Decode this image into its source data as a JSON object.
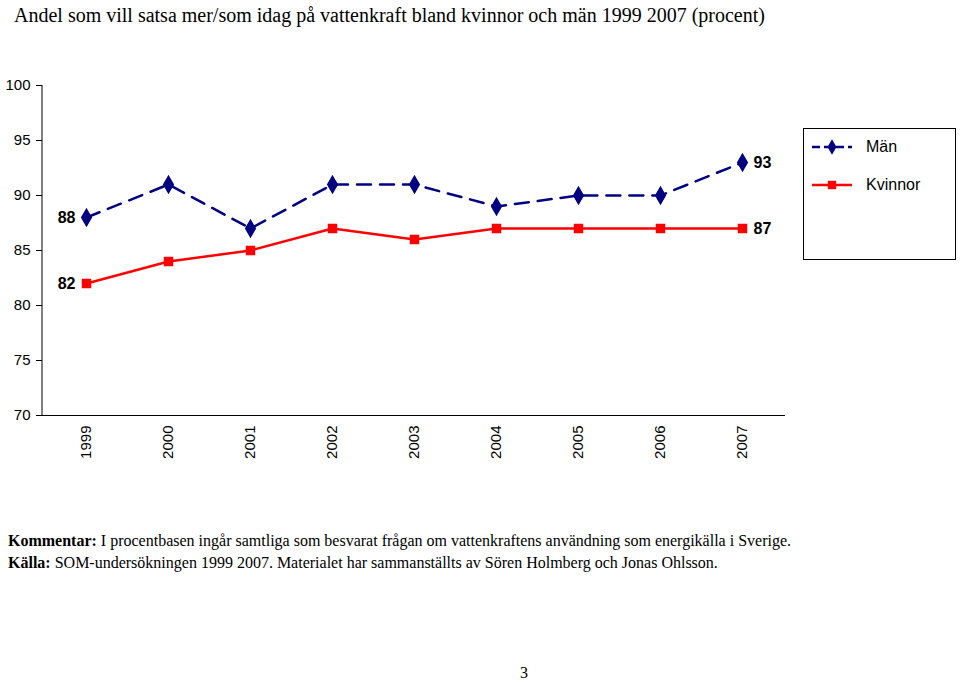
{
  "chart_data": {
    "type": "line",
    "title": "Andel som vill satsa mer/som idag på vattenkraft bland kvinnor och män 1999 2007 (procent)",
    "categories": [
      "1999",
      "2000",
      "2001",
      "2002",
      "2003",
      "2004",
      "2005",
      "2006",
      "2007"
    ],
    "series": [
      {
        "name": "Män",
        "color": "#000080",
        "marker": "diamond",
        "line_style": "dashed",
        "values": [
          88,
          91,
          87,
          91,
          91,
          89,
          90,
          90,
          93
        ],
        "value_labels": [
          "88",
          null,
          null,
          null,
          null,
          null,
          null,
          null,
          "93"
        ]
      },
      {
        "name": "Kvinnor",
        "color": "#ff0000",
        "marker": "square",
        "line_style": "solid",
        "values": [
          82,
          84,
          85,
          87,
          86,
          87,
          87,
          87,
          87
        ],
        "value_labels": [
          "82",
          null,
          null,
          null,
          null,
          null,
          null,
          null,
          "87"
        ]
      }
    ],
    "ylim": [
      70,
      100
    ],
    "yticks": [
      70,
      75,
      80,
      85,
      90,
      95,
      100
    ],
    "grid": false,
    "data_labels": true,
    "legend": "right",
    "notes": [
      {
        "label": "Kommentar:",
        "text": "I procentbasen ingår samtliga som besvarat frågan om vattenkraftens användning som energikälla i Sverige."
      },
      {
        "label": "Källa:",
        "text": "SOM-undersökningen 1999 2007. Materialet har sammanställts av Sören Holmberg och Jonas Ohlsson."
      }
    ],
    "page": "3"
  }
}
